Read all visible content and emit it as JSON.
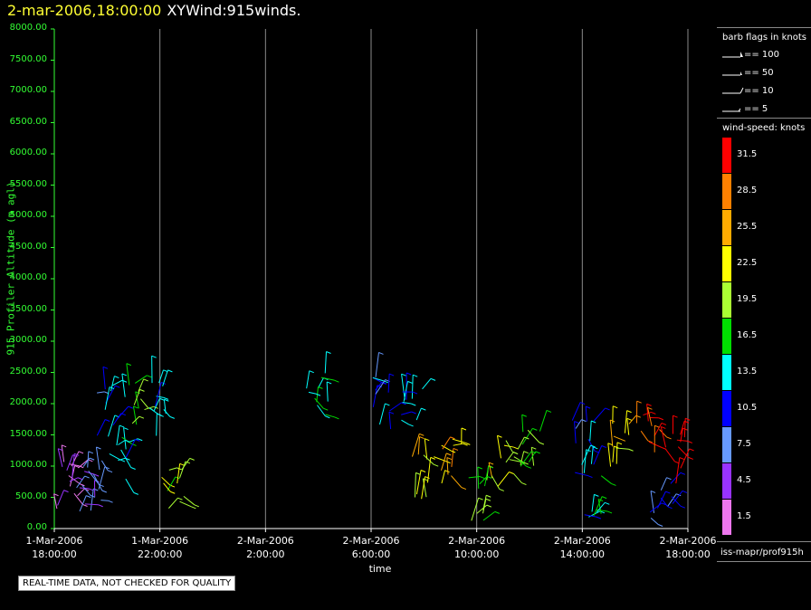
{
  "header": {
    "timestamp": "2-mar-2006,18:00:00",
    "name": "XYWind:915winds."
  },
  "axes": {
    "y_label": "915 Profiler Altitude (m agl)",
    "x_label": "time",
    "y_ticks": [
      "8000.00",
      "7500.00",
      "7000.00",
      "6500.00",
      "6000.00",
      "5500.00",
      "5000.00",
      "4500.00",
      "4000.00",
      "3500.00",
      "3000.00",
      "2500.00",
      "2000.00",
      "1500.00",
      "1000.00",
      "500.00",
      "0.00"
    ],
    "x_ticks": [
      {
        "date": "1-Mar-2006",
        "time": "18:00:00"
      },
      {
        "date": "1-Mar-2006",
        "time": "22:00:00"
      },
      {
        "date": "2-Mar-2006",
        "time": "2:00:00"
      },
      {
        "date": "2-Mar-2006",
        "time": "6:00:00"
      },
      {
        "date": "2-Mar-2006",
        "time": "10:00:00"
      },
      {
        "date": "2-Mar-2006",
        "time": "14:00:00"
      },
      {
        "date": "2-Mar-2006",
        "time": "18:00:00"
      }
    ]
  },
  "legend": {
    "flags_title": "barb flags in knots",
    "flags": [
      "== 100",
      "== 50",
      "== 10",
      "== 5"
    ],
    "speed_title": "wind-speed: knots",
    "scale": [
      {
        "label": "31.5",
        "color": "#ff0000"
      },
      {
        "label": "28.5",
        "color": "#ff8000"
      },
      {
        "label": "25.5",
        "color": "#ffaa00"
      },
      {
        "label": "22.5",
        "color": "#ffff00"
      },
      {
        "label": "19.5",
        "color": "#aaff33"
      },
      {
        "label": "16.5",
        "color": "#00dd00"
      },
      {
        "label": "13.5",
        "color": "#00ffff"
      },
      {
        "label": "10.5",
        "color": "#0000ff"
      },
      {
        "label": "7.5",
        "color": "#6699ff"
      },
      {
        "label": "4.5",
        "color": "#9933ff"
      },
      {
        "label": "1.5",
        "color": "#ee77ee"
      }
    ]
  },
  "source": "iss-mapr/prof915h",
  "warning": "REAL-TIME DATA, NOT CHECKED FOR QUALITY",
  "chart_data": {
    "type": "scatter",
    "xlabel": "time",
    "ylabel": "915 Profiler Altitude (m agl)",
    "x_range": [
      "1-Mar-2006 18:00:00",
      "2-Mar-2006 18:00:00"
    ],
    "ylim": [
      0,
      8000
    ],
    "grid": "vertical lines at x ticks",
    "series": [
      {
        "values": [
          {
            "x": "1-Mar-2006 18:30",
            "y": 700,
            "speed": 3
          },
          {
            "x": "1-Mar-2006 19:00",
            "y": 600,
            "speed": 4
          },
          {
            "x": "1-Mar-2006 19:30",
            "y": 800,
            "speed": 8
          },
          {
            "x": "1-Mar-2006 20:00",
            "y": 1900,
            "speed": 11
          },
          {
            "x": "1-Mar-2006 20:30",
            "y": 1100,
            "speed": 14
          },
          {
            "x": "1-Mar-2006 21:00",
            "y": 2000,
            "speed": 17
          },
          {
            "x": "1-Mar-2006 22:00",
            "y": 1900,
            "speed": 13
          },
          {
            "x": "1-Mar-2006 22:30",
            "y": 600,
            "speed": 20
          },
          {
            "x": "2-Mar-2006 4:00",
            "y": 2200,
            "speed": 15
          },
          {
            "x": "2-Mar-2006 6:30",
            "y": 2000,
            "speed": 11
          },
          {
            "x": "2-Mar-2006 7:30",
            "y": 1900,
            "speed": 13
          },
          {
            "x": "2-Mar-2006 8:00",
            "y": 800,
            "speed": 22
          },
          {
            "x": "2-Mar-2006 9:00",
            "y": 1000,
            "speed": 25
          },
          {
            "x": "2-Mar-2006 10:00",
            "y": 500,
            "speed": 18
          },
          {
            "x": "2-Mar-2006 11:00",
            "y": 1100,
            "speed": 22
          },
          {
            "x": "2-Mar-2006 12:00",
            "y": 1200,
            "speed": 17
          },
          {
            "x": "2-Mar-2006 14:00",
            "y": 1300,
            "speed": 11
          },
          {
            "x": "2-Mar-2006 14:30",
            "y": 600,
            "speed": 14
          },
          {
            "x": "2-Mar-2006 15:30",
            "y": 1300,
            "speed": 22
          },
          {
            "x": "2-Mar-2006 16:30",
            "y": 1400,
            "speed": 29
          },
          {
            "x": "2-Mar-2006 17:00",
            "y": 500,
            "speed": 9
          },
          {
            "x": "2-Mar-2006 17:30",
            "y": 1100,
            "speed": 32
          }
        ]
      }
    ]
  }
}
